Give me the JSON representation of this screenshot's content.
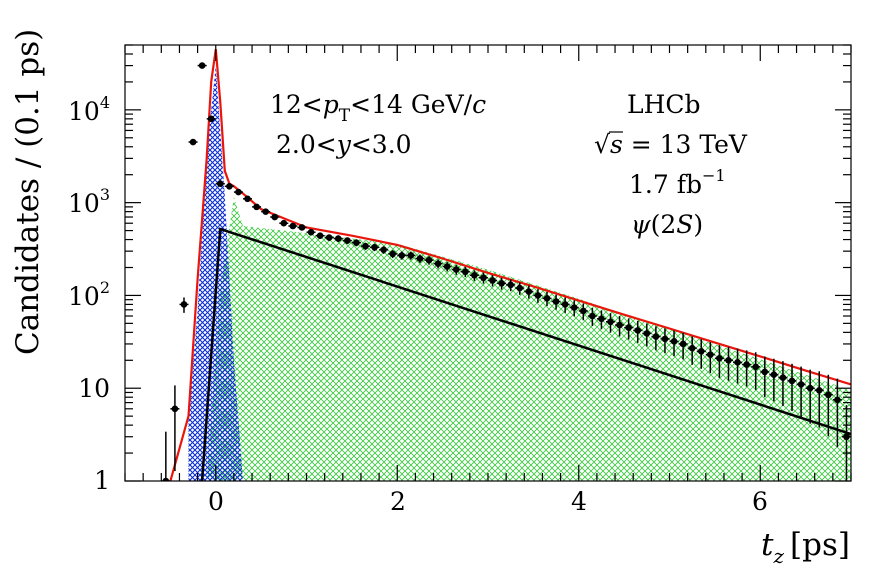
{
  "chart_data": {
    "type": "histogram-fit",
    "x_axis": {
      "label_var": "t",
      "label_sub": "z",
      "label_unit": "[ps]",
      "range": [
        -1.0,
        7.0
      ],
      "ticks": [
        0,
        2,
        4,
        6
      ],
      "tick_labels": [
        "0",
        "2",
        "4",
        "6"
      ]
    },
    "y_axis": {
      "label": "Candidates / (0.1 ps)",
      "scale": "log",
      "range": [
        1,
        50000
      ],
      "ticks": [
        1,
        10,
        100,
        1000,
        10000
      ],
      "tick_labels": {
        "1": "1",
        "10": "10",
        "100": "10",
        "100_exp": "2",
        "1000": "10",
        "1000_exp": "3",
        "10000": "10",
        "10000_exp": "4"
      }
    },
    "annotations": {
      "pt_range": {
        "lo": "12<",
        "var": "p",
        "sub": "T",
        "hi": "<14 GeV/",
        "unit": "c"
      },
      "y_range": {
        "lo": "2.0<",
        "var": "y",
        "hi": "<3.0"
      },
      "experiment": "LHCb",
      "energy": {
        "sqrt": "√",
        "var": "s",
        "text": " = 13 TeV"
      },
      "lumi": {
        "text": "1.7 fb",
        "exp": "−1"
      },
      "particle": {
        "sym": "ψ",
        "open": "(2",
        "state": "S",
        "close": ")"
      }
    },
    "series": [
      {
        "name": "Data",
        "style": "points",
        "color": "#000000",
        "x": [
          -0.55,
          -0.45,
          -0.35,
          -0.25,
          -0.15,
          -0.05,
          0.05,
          0.15,
          0.25,
          0.35,
          0.45,
          0.55,
          0.65,
          0.75,
          0.85,
          0.95,
          1.05,
          1.15,
          1.25,
          1.35,
          1.45,
          1.55,
          1.65,
          1.75,
          1.85,
          1.95,
          2.05,
          2.15,
          2.25,
          2.35,
          2.45,
          2.55,
          2.65,
          2.75,
          2.85,
          2.95,
          3.05,
          3.15,
          3.25,
          3.35,
          3.45,
          3.55,
          3.65,
          3.75,
          3.85,
          3.95,
          4.05,
          4.15,
          4.25,
          4.35,
          4.45,
          4.55,
          4.65,
          4.75,
          4.85,
          4.95,
          5.05,
          5.15,
          5.25,
          5.35,
          5.45,
          5.55,
          5.65,
          5.75,
          5.85,
          5.95,
          6.05,
          6.15,
          6.25,
          6.35,
          6.45,
          6.55,
          6.65,
          6.75,
          6.85,
          6.95
        ],
        "y": [
          1,
          6,
          80,
          4500,
          30000,
          8000,
          1600,
          1500,
          1300,
          1100,
          900,
          800,
          700,
          600,
          560,
          540,
          480,
          440,
          420,
          410,
          390,
          370,
          340,
          330,
          310,
          280,
          270,
          270,
          250,
          240,
          220,
          205,
          190,
          180,
          165,
          155,
          145,
          135,
          130,
          120,
          110,
          100,
          93,
          86,
          80,
          74,
          68,
          60,
          56,
          52,
          48,
          45,
          42,
          39,
          36,
          34,
          32,
          30,
          27,
          25,
          23,
          21,
          20,
          19,
          18,
          17,
          15,
          14,
          13,
          12,
          11,
          10,
          9.5,
          8.5,
          7.5,
          3
        ]
      },
      {
        "name": "Total fit",
        "style": "line",
        "color": "#e8160c",
        "x": [
          -0.5,
          -0.3,
          -0.2,
          -0.1,
          -0.05,
          0.0,
          0.05,
          0.1,
          0.15,
          0.2,
          0.3,
          0.5,
          1.0,
          1.5,
          2.0,
          2.5,
          3.0,
          3.5,
          4.0,
          4.5,
          5.0,
          5.5,
          6.0,
          6.5,
          7.0
        ],
        "y": [
          1,
          5,
          150,
          3000,
          20000,
          45000,
          12000,
          2200,
          1600,
          1500,
          1250,
          850,
          540,
          440,
          350,
          250,
          175,
          125,
          88,
          62,
          44,
          31,
          22,
          15.5,
          11
        ]
      },
      {
        "name": "Prompt",
        "style": "hatched",
        "color": "#0b2fd1",
        "x": [
          -0.3,
          -0.2,
          -0.1,
          0.0,
          0.1,
          0.2,
          0.3
        ],
        "y": [
          5,
          70,
          3500,
          30000,
          1200,
          20,
          1
        ]
      },
      {
        "name": "From b",
        "style": "hatched",
        "color": "#35c83a",
        "x": [
          -0.1,
          0.05,
          0.2,
          0.3,
          1.0,
          2.0,
          3.0,
          4.0,
          5.0,
          6.0,
          7.0
        ],
        "y": [
          1,
          120,
          1150,
          560,
          470,
          360,
          190,
          92,
          43,
          20.5,
          9.5
        ]
      },
      {
        "name": "From b (peak)",
        "style": "line",
        "color": "#000000",
        "x": [
          -0.15,
          0.05,
          7.0
        ],
        "y": [
          1,
          520,
          3.2
        ]
      }
    ]
  }
}
